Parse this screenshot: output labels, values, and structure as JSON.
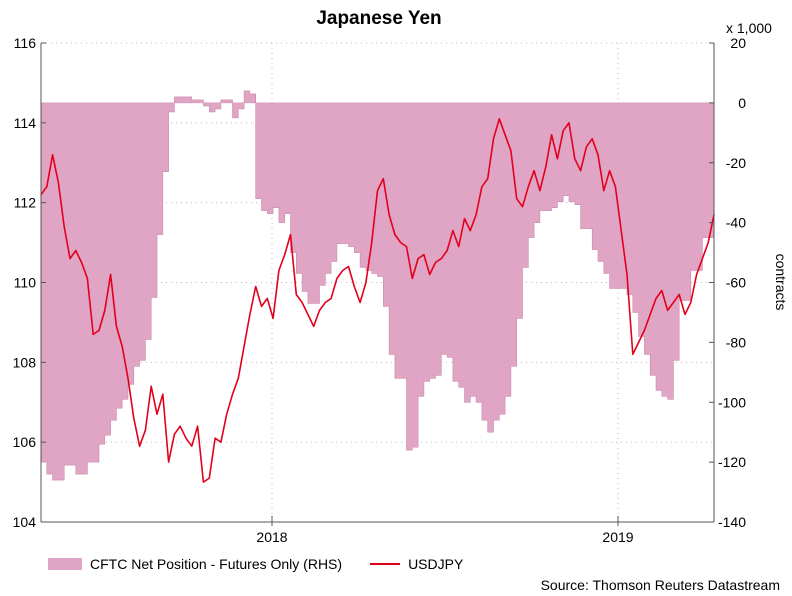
{
  "chart_data": {
    "type": "line",
    "title": "Japanese Yen",
    "x_ticks": [
      "2018",
      "2019"
    ],
    "left_axis": {
      "ylim": [
        104,
        116
      ],
      "ticks": [
        104,
        106,
        108,
        110,
        112,
        114,
        116
      ]
    },
    "right_axis": {
      "label": "contracts",
      "multiplier_label": "x 1,000",
      "ylim": [
        -140,
        20
      ],
      "ticks": [
        -140,
        -120,
        -100,
        -80,
        -60,
        -40,
        -20,
        0,
        20
      ]
    },
    "grid": "dotted",
    "legend_position": "bottom-left",
    "series": [
      {
        "name": "CFTC Net Position - Futures Only (RHS)",
        "type": "area",
        "axis": "right",
        "color": "#e0a4c4",
        "values": [
          -120,
          -124,
          -126,
          -126,
          -121,
          -121,
          -124,
          -124,
          -120,
          -120,
          -114,
          -111,
          -106,
          -102,
          -99,
          -94,
          -88,
          -86,
          -79,
          -65,
          -44,
          -23,
          -3,
          2,
          2,
          2,
          1,
          1,
          -1,
          -3,
          -2,
          1,
          1,
          -5,
          -2,
          4,
          3,
          -32,
          -36,
          -37,
          -35,
          -40,
          -37,
          -50,
          -57,
          -63,
          -67,
          -67,
          -61,
          -57,
          -53,
          -47,
          -47,
          -48,
          -50,
          -55,
          -56,
          -57,
          -58,
          -68,
          -84,
          -92,
          -92,
          -116,
          -115,
          -98,
          -93,
          -92,
          -91,
          -84,
          -85,
          -93,
          -95,
          -100,
          -98,
          -100,
          -106,
          -110,
          -106,
          -104,
          -98,
          -88,
          -72,
          -55,
          -45,
          -40,
          -36,
          -36,
          -35,
          -33,
          -31,
          -33,
          -34,
          -42,
          -42,
          -49,
          -53,
          -57,
          -62,
          -62,
          -62,
          -64,
          -70,
          -78,
          -84,
          -91,
          -96,
          -98,
          -99,
          -86,
          -66,
          -66,
          -56,
          -56,
          -45,
          -45,
          -45
        ]
      },
      {
        "name": "USDJPY",
        "type": "line",
        "axis": "left",
        "color": "#e3001b",
        "values": [
          112.2,
          112.4,
          113.2,
          112.5,
          111.4,
          110.6,
          110.8,
          110.5,
          110.1,
          108.7,
          108.8,
          109.3,
          110.2,
          108.9,
          108.4,
          107.6,
          106.6,
          105.9,
          106.3,
          107.4,
          106.7,
          107.2,
          105.5,
          106.2,
          106.4,
          106.1,
          105.9,
          106.4,
          105.0,
          105.1,
          106.1,
          106.0,
          106.7,
          107.2,
          107.6,
          108.4,
          109.2,
          109.9,
          109.4,
          109.6,
          109.1,
          110.3,
          110.7,
          111.2,
          109.7,
          109.5,
          109.2,
          108.9,
          109.3,
          109.5,
          109.6,
          110.1,
          110.3,
          110.4,
          109.9,
          109.5,
          110.0,
          111.0,
          112.3,
          112.6,
          111.7,
          111.2,
          111.0,
          110.9,
          110.1,
          110.6,
          110.7,
          110.2,
          110.5,
          110.6,
          110.8,
          111.3,
          110.9,
          111.6,
          111.3,
          111.7,
          112.4,
          112.6,
          113.6,
          114.1,
          113.7,
          113.3,
          112.1,
          111.9,
          112.4,
          112.8,
          112.3,
          112.9,
          113.7,
          113.1,
          113.8,
          114.0,
          113.1,
          112.8,
          113.4,
          113.6,
          113.2,
          112.3,
          112.8,
          112.4,
          111.3,
          110.2,
          108.2,
          108.5,
          108.8,
          109.2,
          109.6,
          109.8,
          109.3,
          109.5,
          109.7,
          109.2,
          109.5,
          110.2,
          110.6,
          111.0,
          111.7
        ]
      }
    ]
  },
  "source": "Source: Thomson Reuters Datastream"
}
